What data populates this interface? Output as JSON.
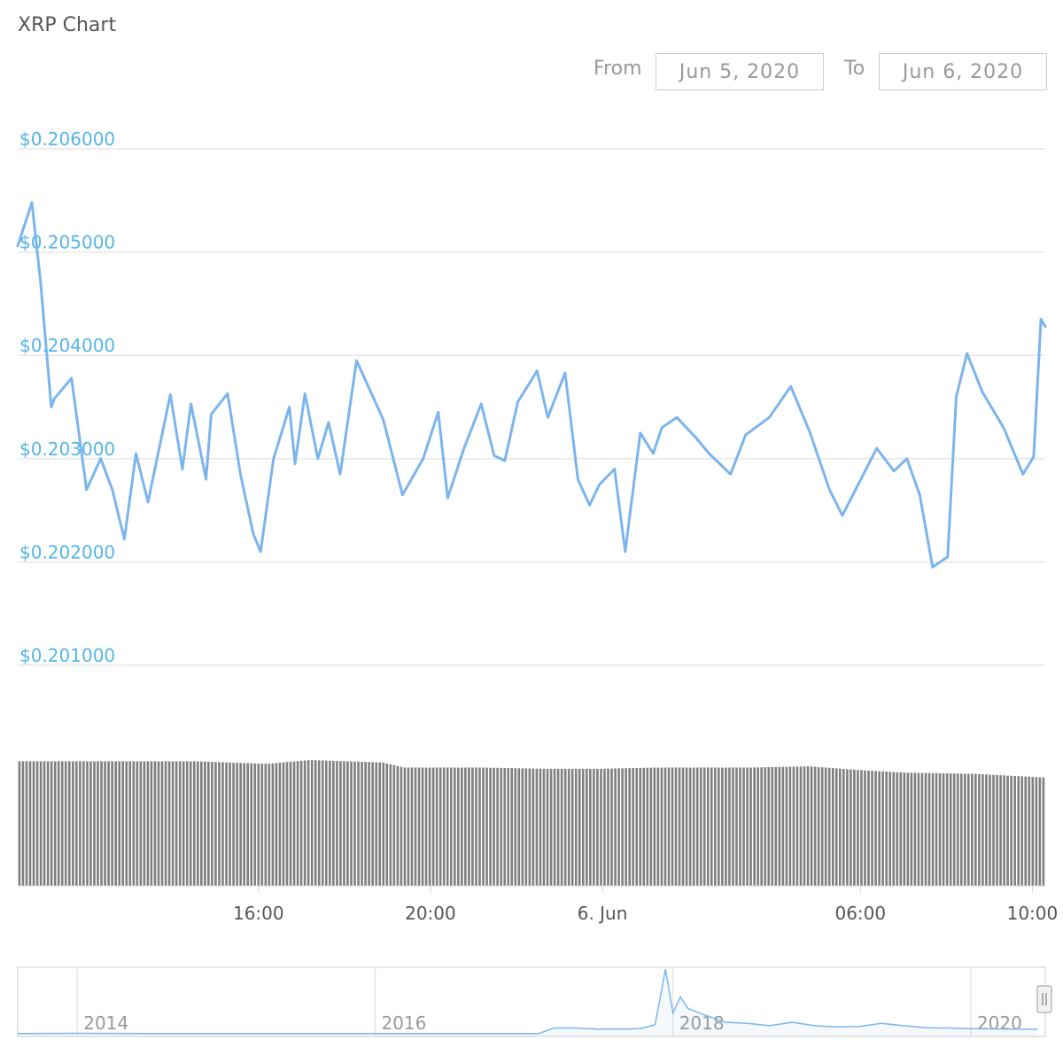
{
  "title": "XRP Chart",
  "date_range": {
    "from_label": "From",
    "from_value": "Jun 5, 2020",
    "to_label": "To",
    "to_value": "Jun 6, 2020"
  },
  "colors": {
    "price_line": "#7cb5ec",
    "y_tick_text": "#55b5e6",
    "volume_bar": "#808080",
    "grid": "#e6e6e6"
  },
  "chart_data": [
    {
      "type": "line",
      "title": "XRP Chart",
      "xlabel": "",
      "ylabel": "",
      "x_ticks": [
        "16:00",
        "20:00",
        "6. Jun",
        "06:00",
        "10:00"
      ],
      "x_tick_hours": [
        16,
        20,
        24,
        30,
        34
      ],
      "y_ticks": [
        "$0.206000",
        "$0.205000",
        "$0.204000",
        "$0.203000",
        "$0.202000",
        "$0.201000"
      ],
      "ylim": [
        0.2005,
        0.2062
      ],
      "xlim": [
        10.4,
        34.3
      ],
      "grid": true,
      "legend": "none",
      "series": [
        {
          "x": [
            10.4,
            10.73,
            10.93,
            11.18,
            11.25,
            11.65,
            12.0,
            12.33,
            12.6,
            12.88,
            13.15,
            13.43,
            13.95,
            14.23,
            14.43,
            14.78,
            14.9,
            15.28,
            15.58,
            15.88,
            16.05,
            16.35,
            16.72,
            16.85,
            17.08,
            17.38,
            17.63,
            17.9,
            18.28,
            18.9,
            19.35,
            19.83,
            20.18,
            20.4,
            20.78,
            21.18,
            21.48,
            21.73,
            22.03,
            22.48,
            22.73,
            23.13,
            23.43,
            23.7,
            23.93,
            24.28,
            24.53,
            24.88,
            25.18,
            25.38,
            25.73,
            26.18,
            26.48,
            26.98,
            27.33,
            27.88,
            28.38,
            28.83,
            29.28,
            29.58,
            30.38,
            30.78,
            31.08,
            31.38,
            31.68,
            32.03,
            32.23,
            32.48,
            32.83,
            33.33,
            33.78,
            34.03,
            34.2,
            34.3
          ],
          "y": [
            0.20506,
            0.20548,
            0.20472,
            0.2035,
            0.20358,
            0.20378,
            0.2027,
            0.203,
            0.2027,
            0.20222,
            0.20305,
            0.20258,
            0.20362,
            0.2029,
            0.20353,
            0.2028,
            0.20343,
            0.20363,
            0.20285,
            0.20227,
            0.2021,
            0.203,
            0.2035,
            0.20295,
            0.20363,
            0.203,
            0.20335,
            0.20285,
            0.20395,
            0.20338,
            0.20265,
            0.203,
            0.20345,
            0.20262,
            0.2031,
            0.20353,
            0.20303,
            0.20298,
            0.20355,
            0.20385,
            0.2034,
            0.20383,
            0.2028,
            0.20255,
            0.20275,
            0.2029,
            0.2021,
            0.20325,
            0.20305,
            0.2033,
            0.2034,
            0.2032,
            0.20305,
            0.20285,
            0.20323,
            0.2034,
            0.2037,
            0.20325,
            0.2027,
            0.20245,
            0.2031,
            0.20288,
            0.203,
            0.20265,
            0.20195,
            0.20205,
            0.2036,
            0.20402,
            0.20365,
            0.2033,
            0.20285,
            0.20302,
            0.20435,
            0.20428
          ]
        }
      ]
    },
    {
      "type": "bar",
      "title": "",
      "xlabel": "",
      "ylabel": "",
      "grid": false,
      "note_values": "relative volume per interval",
      "series": [
        {
          "x_start": 10.4,
          "x_end": 34.3,
          "bar_count": 288,
          "values_anchor_hours": [
            10.4,
            11.6,
            13.0,
            14.5,
            16.2,
            17.2,
            18.9,
            19.4,
            21.2,
            22.8,
            23.9,
            25.2,
            26.0,
            27.4,
            28.8,
            30.0,
            31.0,
            32.7,
            34.3
          ],
          "values_anchor_levels": [
            0.99,
            0.99,
            0.99,
            0.99,
            0.97,
            1.0,
            0.98,
            0.94,
            0.94,
            0.93,
            0.93,
            0.94,
            0.94,
            0.94,
            0.95,
            0.92,
            0.9,
            0.89,
            0.86
          ]
        }
      ]
    },
    {
      "type": "area",
      "title": "",
      "xlabel": "",
      "ylabel": "",
      "x_ticks": [
        "2014",
        "2016",
        "2018",
        "2020"
      ],
      "x_tick_years": [
        2014,
        2016,
        2018,
        2020
      ],
      "xlim": [
        2013.6,
        2020.5
      ],
      "grid": true,
      "series": [
        {
          "x": [
            2013.6,
            2014.0,
            2014.5,
            2015.0,
            2015.5,
            2016.0,
            2016.5,
            2017.0,
            2017.1,
            2017.2,
            2017.35,
            2017.5,
            2017.6,
            2017.7,
            2017.8,
            2017.88,
            2017.95,
            2018.0,
            2018.05,
            2018.1,
            2018.2,
            2018.35,
            2018.5,
            2018.65,
            2018.8,
            2018.95,
            2019.1,
            2019.25,
            2019.4,
            2019.55,
            2019.7,
            2019.85,
            2020.0,
            2020.15,
            2020.3,
            2020.45
          ],
          "y": [
            0.01,
            0.02,
            0.01,
            0.01,
            0.01,
            0.01,
            0.007,
            0.006,
            0.01,
            0.25,
            0.25,
            0.2,
            0.21,
            0.2,
            0.25,
            0.4,
            2.8,
            0.9,
            1.6,
            1.1,
            0.85,
            0.5,
            0.45,
            0.35,
            0.5,
            0.35,
            0.3,
            0.32,
            0.45,
            0.35,
            0.26,
            0.25,
            0.22,
            0.21,
            0.2,
            0.2
          ]
        }
      ]
    }
  ]
}
